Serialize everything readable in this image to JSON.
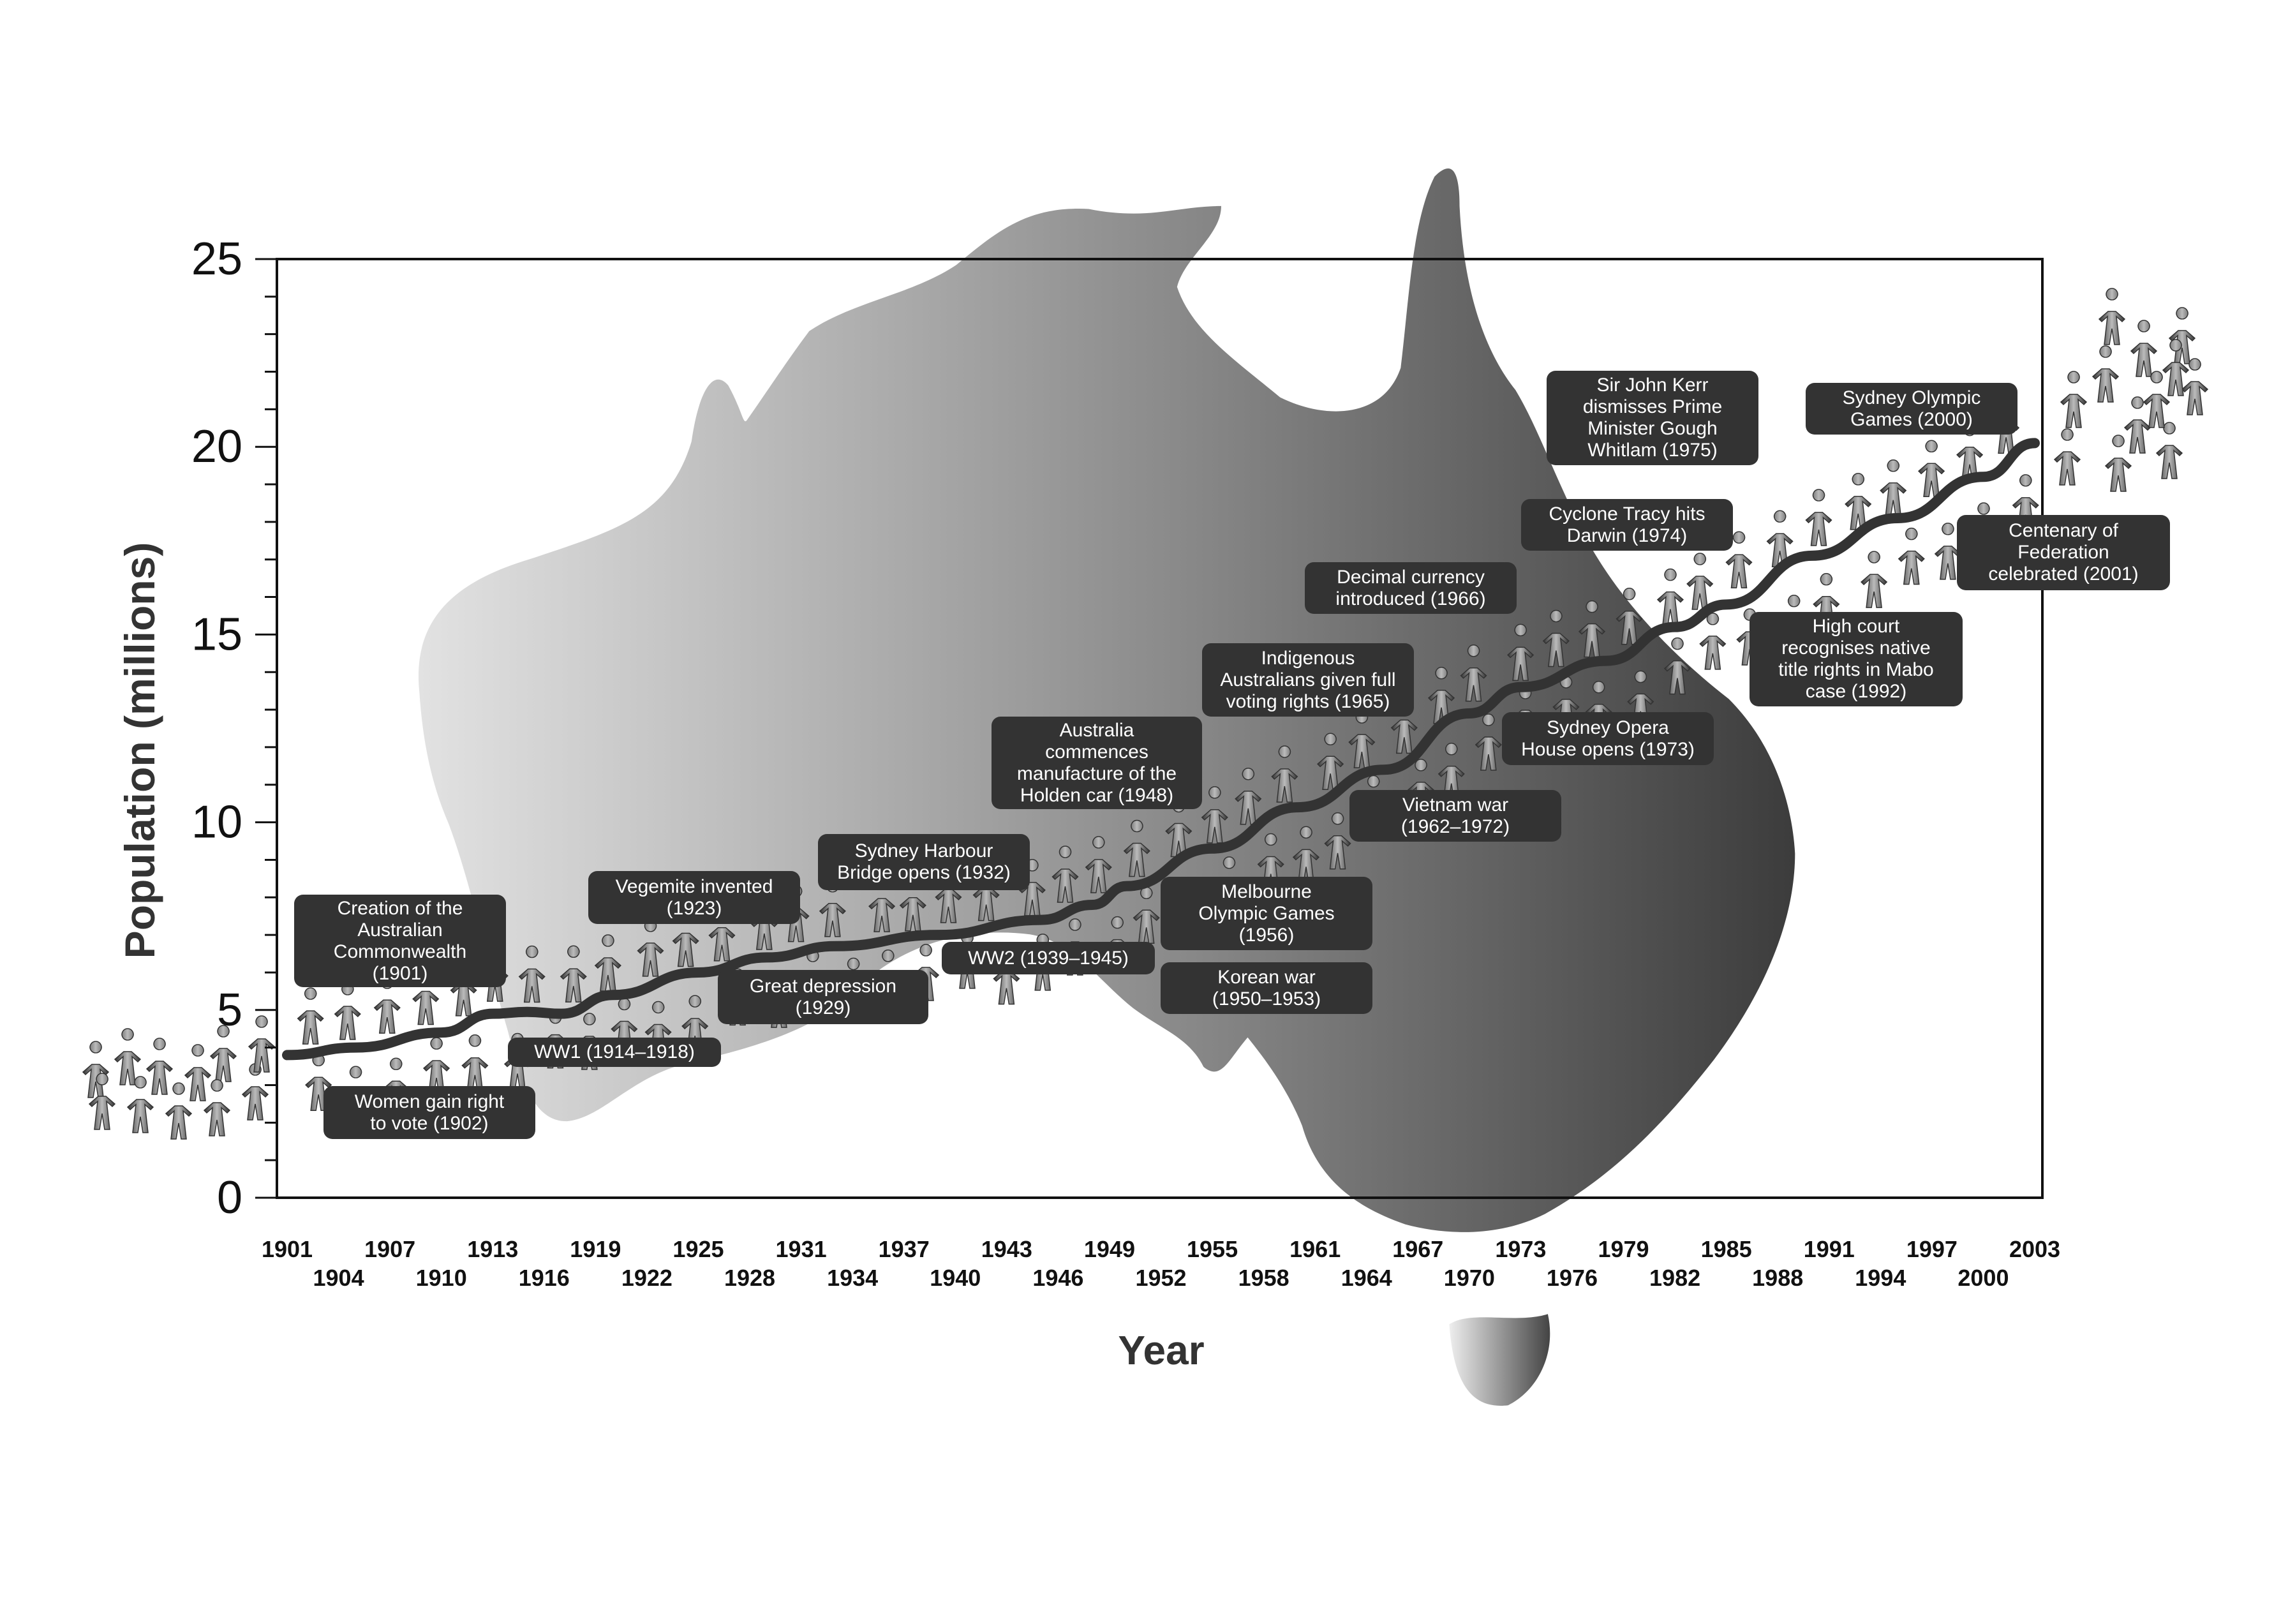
{
  "chart_data": {
    "type": "line",
    "title": "",
    "xlabel": "Year",
    "ylabel": "Population (millions)",
    "ylim": [
      0,
      25
    ],
    "xlim": [
      1901,
      2003
    ],
    "yticks": [
      "0",
      "5",
      "10",
      "15",
      "20",
      "25"
    ],
    "xticks": [
      "1901",
      "1904",
      "1907",
      "1910",
      "1913",
      "1916",
      "1919",
      "1922",
      "1925",
      "1928",
      "1931",
      "1934",
      "1937",
      "1940",
      "1943",
      "1946",
      "1949",
      "1952",
      "1955",
      "1958",
      "1961",
      "1964",
      "1967",
      "1970",
      "1973",
      "1976",
      "1979",
      "1982",
      "1985",
      "1988",
      "1991",
      "1994",
      "1997",
      "2000",
      "2003"
    ],
    "grid": false,
    "line_color": "#333333",
    "background": "grayscale map of Australia with horizontal light-to-dark gradient",
    "series": [
      {
        "x": [
          1901,
          1905,
          1910,
          1913,
          1915,
          1917,
          1920,
          1925,
          1929,
          1933,
          1939,
          1945,
          1948,
          1950,
          1955,
          1960,
          1965,
          1970,
          1973,
          1978,
          1982,
          1985,
          1990,
          1995,
          2000,
          2003
        ],
        "y": [
          3.8,
          4.0,
          4.4,
          4.9,
          4.95,
          4.9,
          5.4,
          6.0,
          6.4,
          6.7,
          7.0,
          7.4,
          7.8,
          8.3,
          9.3,
          10.4,
          11.4,
          12.9,
          13.6,
          14.3,
          15.2,
          15.8,
          17.1,
          18.1,
          19.2,
          20.1
        ]
      }
    ],
    "annotations": [
      "Creation of the\nAustralian\nCommonwealth\n(1901)",
      "Women gain right\nto vote (1902)",
      "WW1 (1914–1918)",
      "Vegemite invented\n(1923)",
      "Great depression\n(1929)",
      "Sydney Harbour\nBridge opens (1932)",
      "WW2 (1939–1945)",
      "Australia\ncommences\nmanufacture of the\nHolden car (1948)",
      "Korean war\n(1950–1953)",
      "Melbourne\nOlympic Games\n(1956)",
      "Indigenous\nAustralians given full\nvoting rights (1965)",
      "Vietnam war\n(1962–1972)",
      "Decimal currency\nintroduced (1966)",
      "Sydney Opera\nHouse opens (1973)",
      "Cyclone Tracy hits\nDarwin (1974)",
      "Sir John Kerr\ndismisses Prime\nMinister Gough\nWhitlam (1975)",
      "High court\nrecognises native\ntitle rights in Mabo\ncase (1992)",
      "Sydney Olympic\nGames (2000)",
      "Centenary of\nFederation\ncelebrated (2001)"
    ]
  }
}
